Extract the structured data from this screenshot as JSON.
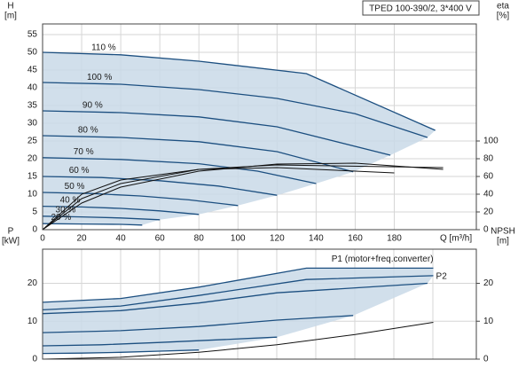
{
  "chart_data": [
    {
      "type": "line",
      "title": "TPED 100-390/2, 3*400 V",
      "y_label": "H",
      "y_unit": "[m]",
      "y2_label": "eta",
      "y2_unit": "[%]",
      "x_label": "Q [m³/h]",
      "xlim": [
        0,
        222
      ],
      "xticks": [
        0,
        20,
        40,
        60,
        80,
        100,
        120,
        140,
        160,
        180
      ],
      "ylim": [
        0,
        58
      ],
      "yticks": [
        0,
        5,
        10,
        15,
        20,
        25,
        30,
        35,
        40,
        45,
        50,
        55
      ],
      "y2lim": [
        0,
        232
      ],
      "y2ticks": [
        0,
        20,
        40,
        60,
        80,
        100
      ],
      "grid": true,
      "series": [
        {
          "name": "110 %",
          "color": "#1c4f80",
          "x": [
            0,
            40,
            80,
            135,
            201
          ],
          "values": [
            50,
            49.3,
            47.5,
            44,
            28
          ]
        },
        {
          "name": "100 %",
          "color": "#1c4f80",
          "x": [
            0,
            40,
            80,
            120,
            160,
            197
          ],
          "values": [
            41.5,
            41,
            39.5,
            37,
            32.7,
            26
          ]
        },
        {
          "name": "90 %",
          "color": "#1c4f80",
          "x": [
            0,
            40,
            80,
            120,
            178
          ],
          "values": [
            33.5,
            33,
            31.8,
            29,
            21
          ]
        },
        {
          "name": "80 %",
          "color": "#1c4f80",
          "x": [
            0,
            40,
            80,
            120,
            159
          ],
          "values": [
            26.5,
            26,
            24.8,
            22,
            16.3
          ]
        },
        {
          "name": "70 %",
          "color": "#1c4f80",
          "x": [
            0,
            40,
            80,
            110,
            140
          ],
          "values": [
            20.3,
            19.8,
            18.6,
            16.5,
            13
          ]
        },
        {
          "name": "60 %",
          "color": "#1c4f80",
          "x": [
            0,
            30,
            60,
            90,
            120
          ],
          "values": [
            15,
            14.7,
            13.8,
            12.3,
            9.7
          ]
        },
        {
          "name": "50 %",
          "color": "#1c4f80",
          "x": [
            0,
            25,
            50,
            75,
            100
          ],
          "values": [
            10.5,
            10.2,
            9.5,
            8.4,
            6.8
          ]
        },
        {
          "name": "40 %",
          "color": "#1c4f80",
          "x": [
            0,
            20,
            40,
            60,
            80
          ],
          "values": [
            6.6,
            6.4,
            6,
            5.3,
            4.3
          ]
        },
        {
          "name": "30 %",
          "color": "#1c4f80",
          "x": [
            0,
            20,
            40,
            60
          ],
          "values": [
            3.8,
            3.6,
            3.3,
            2.8
          ]
        },
        {
          "name": "20 %",
          "color": "#1c4f80",
          "x": [
            0,
            20,
            40,
            51
          ],
          "values": [
            1.7,
            1.6,
            1.5,
            1.3
          ]
        },
        {
          "color": "#111111",
          "axis": "y2",
          "x": [
            0,
            20,
            40,
            80,
            120,
            160,
            205
          ],
          "values": [
            0,
            30,
            48,
            66,
            74,
            75,
            68
          ]
        },
        {
          "color": "#111111",
          "axis": "y2",
          "x": [
            0,
            20,
            40,
            80,
            120,
            205
          ],
          "values": [
            0,
            35,
            52,
            68,
            73,
            70
          ]
        },
        {
          "color": "#111111",
          "axis": "y2",
          "x": [
            0,
            20,
            40,
            80,
            120,
            180
          ],
          "values": [
            0,
            40,
            56,
            68,
            70,
            64
          ]
        }
      ]
    },
    {
      "type": "line",
      "y_label": "P",
      "y_unit": "[kW]",
      "y2_label": "NPSH",
      "y2_unit": "[m]",
      "xlim": [
        0,
        222
      ],
      "ylim": [
        0,
        29
      ],
      "yticks": [
        0,
        10,
        20
      ],
      "y2lim": [
        0,
        29
      ],
      "y2ticks": [
        0,
        10,
        20
      ],
      "grid": true,
      "series": [
        {
          "name": "P1 (motor+freq.converter)",
          "color": "#1c4f80",
          "x": [
            0,
            40,
            80,
            135,
            200
          ],
          "values": [
            15,
            16,
            19,
            24,
            24
          ]
        },
        {
          "name": "P2",
          "color": "#1c4f80",
          "x": [
            0,
            40,
            80,
            135,
            200
          ],
          "values": [
            13,
            14,
            16.8,
            21,
            22
          ]
        },
        {
          "color": "#1c4f80",
          "x": [
            0,
            40,
            80,
            120,
            197
          ],
          "values": [
            12,
            12.8,
            14.8,
            17.5,
            20
          ]
        },
        {
          "color": "#1c4f80",
          "x": [
            0,
            40,
            80,
            120,
            159
          ],
          "values": [
            7,
            7.5,
            8.6,
            10.3,
            11.5
          ]
        },
        {
          "color": "#1c4f80",
          "x": [
            0,
            30,
            60,
            90,
            120
          ],
          "values": [
            3.5,
            3.8,
            4.4,
            5.1,
            5.8
          ]
        },
        {
          "color": "#1c4f80",
          "x": [
            0,
            20,
            40,
            60,
            80
          ],
          "values": [
            1.5,
            1.6,
            1.8,
            2.1,
            2.4
          ]
        },
        {
          "color": "#111111",
          "axis": "y2",
          "x": [
            0,
            40,
            80,
            120,
            160,
            200
          ],
          "values": [
            0,
            0.5,
            1.8,
            3.8,
            6.5,
            9.7
          ]
        }
      ]
    }
  ]
}
